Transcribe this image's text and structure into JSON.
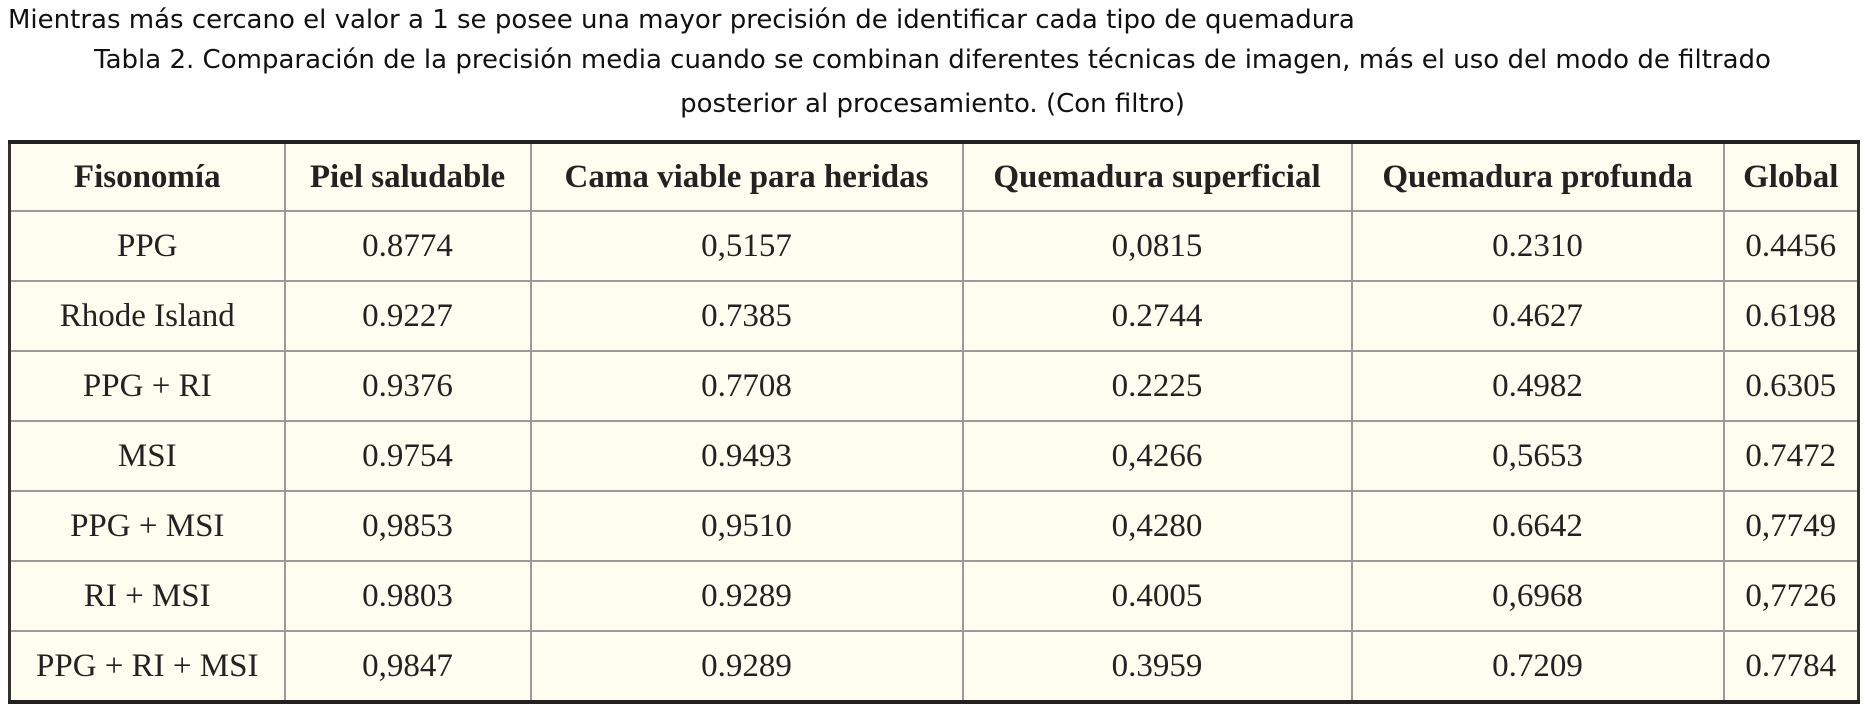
{
  "note": "Mientras más cercano el valor a 1 se posee una mayor precisión de identificar cada tipo de quemadura",
  "caption": "Tabla 2. Comparación de la precisión media cuando se combinan diferentes técnicas de imagen, más el uso del modo de filtrado posterior al procesamiento. (Con filtro)",
  "table": {
    "headers": [
      "Fisonomía",
      "Piel saludable",
      "Cama viable para heridas",
      "Quemadura superficial",
      "Quemadura profunda",
      "Global"
    ],
    "rows": [
      [
        "PPG",
        "0.8774",
        "0,5157",
        "0,0815",
        "0.2310",
        "0.4456"
      ],
      [
        "Rhode Island",
        "0.9227",
        "0.7385",
        "0.2744",
        "0.4627",
        "0.6198"
      ],
      [
        "PPG + RI",
        "0.9376",
        "0.7708",
        "0.2225",
        "0.4982",
        "0.6305"
      ],
      [
        "MSI",
        "0.9754",
        "0.9493",
        "0,4266",
        "0,5653",
        "0.7472"
      ],
      [
        "PPG + MSI",
        "0,9853",
        "0,9510",
        "0,4280",
        "0.6642",
        "0,7749"
      ],
      [
        "RI + MSI",
        "0.9803",
        "0.9289",
        "0.4005",
        "0,6968",
        "0,7726"
      ],
      [
        "PPG + RI + MSI",
        "0,9847",
        "0.9289",
        "0.3959",
        "0.7209",
        "0.7784"
      ]
    ]
  }
}
